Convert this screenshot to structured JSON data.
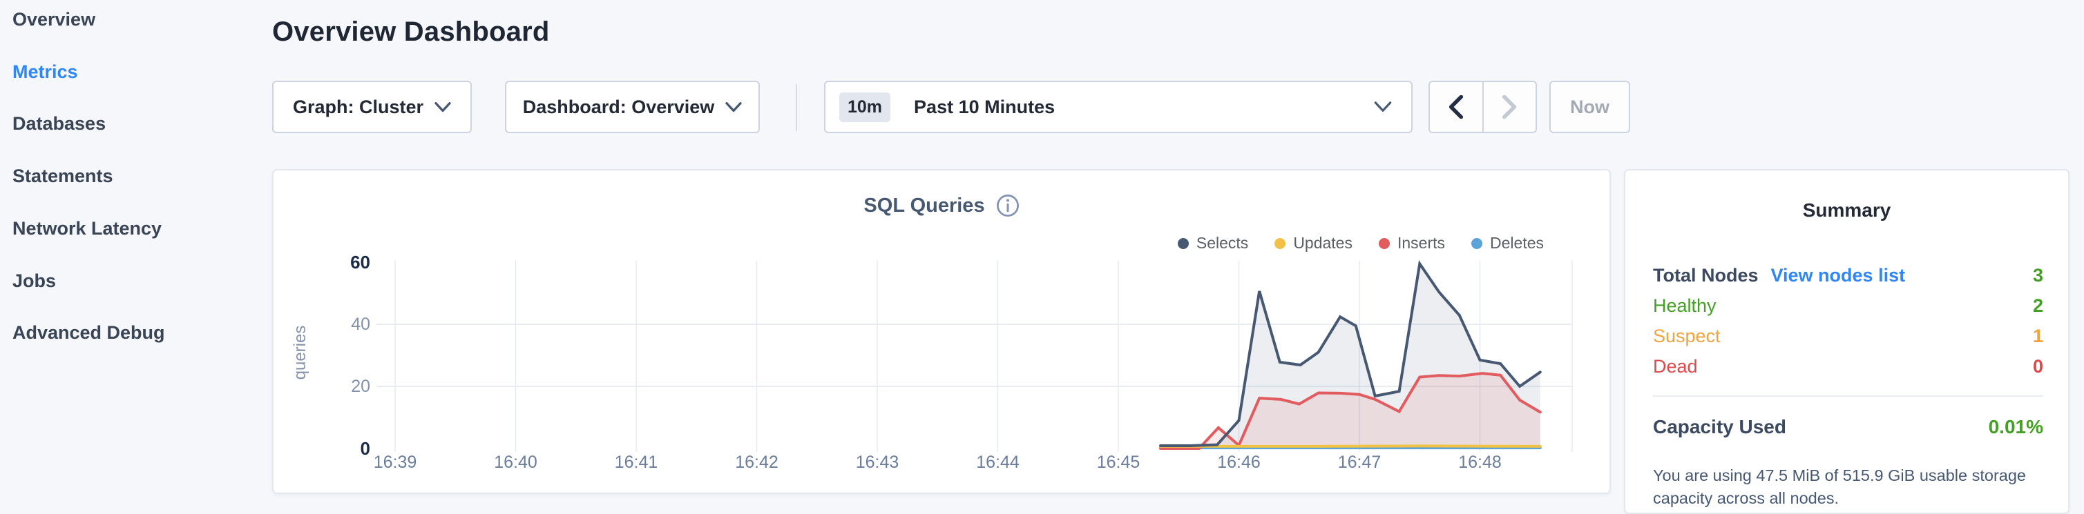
{
  "page": {
    "title": "Overview Dashboard"
  },
  "sidebar": {
    "items": [
      {
        "label": "Overview",
        "active": false
      },
      {
        "label": "Metrics",
        "active": true
      },
      {
        "label": "Databases",
        "active": false
      },
      {
        "label": "Statements",
        "active": false
      },
      {
        "label": "Network Latency",
        "active": false
      },
      {
        "label": "Jobs",
        "active": false
      },
      {
        "label": "Advanced Debug",
        "active": false
      }
    ]
  },
  "toolbar": {
    "graph_label": "Graph: Cluster",
    "dashboard_label": "Dashboard: Overview",
    "time_badge": "10m",
    "time_label": "Past 10 Minutes",
    "now_label": "Now",
    "icons": {
      "dropdown": "chevron-down",
      "prev": "chevron-left",
      "next": "chevron-right"
    }
  },
  "chart_data": {
    "type": "area",
    "title": "SQL Queries",
    "ylabel": "queries",
    "ylim": [
      0,
      60
    ],
    "y_ticks": [
      {
        "label": "60",
        "value": 60,
        "strong": true
      },
      {
        "label": "40",
        "value": 40,
        "strong": false
      },
      {
        "label": "20",
        "value": 20,
        "strong": false
      },
      {
        "label": "0",
        "value": 0,
        "strong": true
      }
    ],
    "x_ticks": [
      "16:39",
      "16:40",
      "16:41",
      "16:42",
      "16:43",
      "16:44",
      "16:45",
      "16:46",
      "16:47",
      "16:48"
    ],
    "x_unit": "minutes after 16:39",
    "grid": true,
    "legend_position": "top-right",
    "series": [
      {
        "name": "Selects",
        "color": "#475872",
        "fill": "rgba(71,88,114,0.10)",
        "points": [
          [
            6.35,
            0.9
          ],
          [
            6.6,
            0.9
          ],
          [
            6.82,
            1.2
          ],
          [
            7.0,
            9
          ],
          [
            7.17,
            50.7
          ],
          [
            7.34,
            27.8
          ],
          [
            7.51,
            26.9
          ],
          [
            7.66,
            31
          ],
          [
            7.84,
            42.4
          ],
          [
            7.97,
            39.5
          ],
          [
            8.13,
            16.9
          ],
          [
            8.33,
            18.4
          ],
          [
            8.5,
            59.5
          ],
          [
            8.66,
            50.4
          ],
          [
            8.83,
            42.9
          ],
          [
            9.0,
            28.5
          ],
          [
            9.17,
            27.3
          ],
          [
            9.33,
            20
          ],
          [
            9.5,
            24.6
          ]
        ]
      },
      {
        "name": "Updates",
        "color": "#f2c245",
        "fill": "none",
        "points": [
          [
            6.35,
            0.7
          ],
          [
            7.5,
            0.7
          ],
          [
            8.5,
            0.8
          ],
          [
            9.5,
            0.7
          ]
        ]
      },
      {
        "name": "Inserts",
        "color": "#e25b5e",
        "fill": "rgba(226,91,94,0.12)",
        "points": [
          [
            6.35,
            0
          ],
          [
            6.67,
            0
          ],
          [
            6.83,
            6.7
          ],
          [
            7.0,
            1
          ],
          [
            7.17,
            16.2
          ],
          [
            7.35,
            15.8
          ],
          [
            7.5,
            14.3
          ],
          [
            7.66,
            17.9
          ],
          [
            7.84,
            17.8
          ],
          [
            8.0,
            17.4
          ],
          [
            8.13,
            15.8
          ],
          [
            8.33,
            11.9
          ],
          [
            8.5,
            23
          ],
          [
            8.66,
            23.5
          ],
          [
            8.83,
            23.3
          ],
          [
            9.02,
            24.2
          ],
          [
            9.17,
            23.6
          ],
          [
            9.33,
            15.6
          ],
          [
            9.5,
            11.7
          ]
        ]
      },
      {
        "name": "Deletes",
        "color": "#5ca3da",
        "fill": "none",
        "points": [
          [
            6.35,
            0.2
          ],
          [
            9.5,
            0.2
          ]
        ]
      }
    ],
    "info_icon": "info-circle"
  },
  "summary": {
    "title": "Summary",
    "rows": [
      {
        "label": "Total Nodes",
        "label_color": "#3b4a60",
        "label_bold": true,
        "link": "View nodes list",
        "value": "3",
        "value_color": "#44a025"
      },
      {
        "label": "Healthy",
        "label_color": "#44a025",
        "label_bold": false,
        "link": null,
        "value": "2",
        "value_color": "#44a025"
      },
      {
        "label": "Suspect",
        "label_color": "#f2a33b",
        "label_bold": false,
        "link": null,
        "value": "1",
        "value_color": "#f2a33b"
      },
      {
        "label": "Dead",
        "label_color": "#e04849",
        "label_bold": false,
        "link": null,
        "value": "0",
        "value_color": "#e04849"
      }
    ],
    "capacity": {
      "label": "Capacity Used",
      "value": "0.01%",
      "value_color": "#44a025",
      "caption": "You are using 47.5 MiB of 515.9 GiB usable storage capacity across all nodes."
    }
  },
  "colors": {
    "background": "#f5f7fa",
    "accent_blue": "#2e86f7",
    "healthy_green": "#44a025",
    "suspect_orange": "#f2a33b",
    "dead_red": "#e04849",
    "grid": "#e5eaf1"
  }
}
